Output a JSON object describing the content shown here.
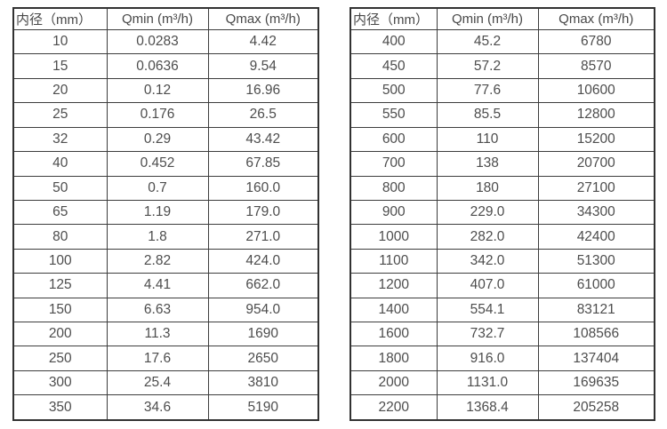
{
  "tables": [
    {
      "name": "flow-table-small-diameters",
      "headers": [
        "内径（mm）",
        "Qmin (m³/h)",
        "Qmax (m³/h)"
      ],
      "rows": [
        [
          "10",
          "0.0283",
          "4.42"
        ],
        [
          "15",
          "0.0636",
          "9.54"
        ],
        [
          "20",
          "0.12",
          "16.96"
        ],
        [
          "25",
          "0.176",
          "26.5"
        ],
        [
          "32",
          "0.29",
          "43.42"
        ],
        [
          "40",
          "0.452",
          "67.85"
        ],
        [
          "50",
          "0.7",
          "160.0"
        ],
        [
          "65",
          "1.19",
          "179.0"
        ],
        [
          "80",
          "1.8",
          "271.0"
        ],
        [
          "100",
          "2.82",
          "424.0"
        ],
        [
          "125",
          "4.41",
          "662.0"
        ],
        [
          "150",
          "6.63",
          "954.0"
        ],
        [
          "200",
          "11.3",
          "1690"
        ],
        [
          "250",
          "17.6",
          "2650"
        ],
        [
          "300",
          "25.4",
          "3810"
        ],
        [
          "350",
          "34.6",
          "5190"
        ]
      ]
    },
    {
      "name": "flow-table-large-diameters",
      "headers": [
        "内径（mm）",
        "Qmin (m³/h)",
        "Qmax (m³/h)"
      ],
      "rows": [
        [
          "400",
          "45.2",
          "6780"
        ],
        [
          "450",
          "57.2",
          "8570"
        ],
        [
          "500",
          "77.6",
          "10600"
        ],
        [
          "550",
          "85.5",
          "12800"
        ],
        [
          "600",
          "110",
          "15200"
        ],
        [
          "700",
          "138",
          "20700"
        ],
        [
          "800",
          "180",
          "27100"
        ],
        [
          "900",
          "229.0",
          "34300"
        ],
        [
          "1000",
          "282.0",
          "42400"
        ],
        [
          "1100",
          "342.0",
          "51300"
        ],
        [
          "1200",
          "407.0",
          "61000"
        ],
        [
          "1400",
          "554.1",
          "83121"
        ],
        [
          "1600",
          "732.7",
          "108566"
        ],
        [
          "1800",
          "916.0",
          "137404"
        ],
        [
          "2000",
          "1131.0",
          "169635"
        ],
        [
          "2200",
          "1368.4",
          "205258"
        ]
      ]
    }
  ],
  "colors": {
    "border_outer": "#323232",
    "border_inner": "#3d3d3d",
    "text": "#4d4d4d",
    "background": "#ffffff"
  }
}
